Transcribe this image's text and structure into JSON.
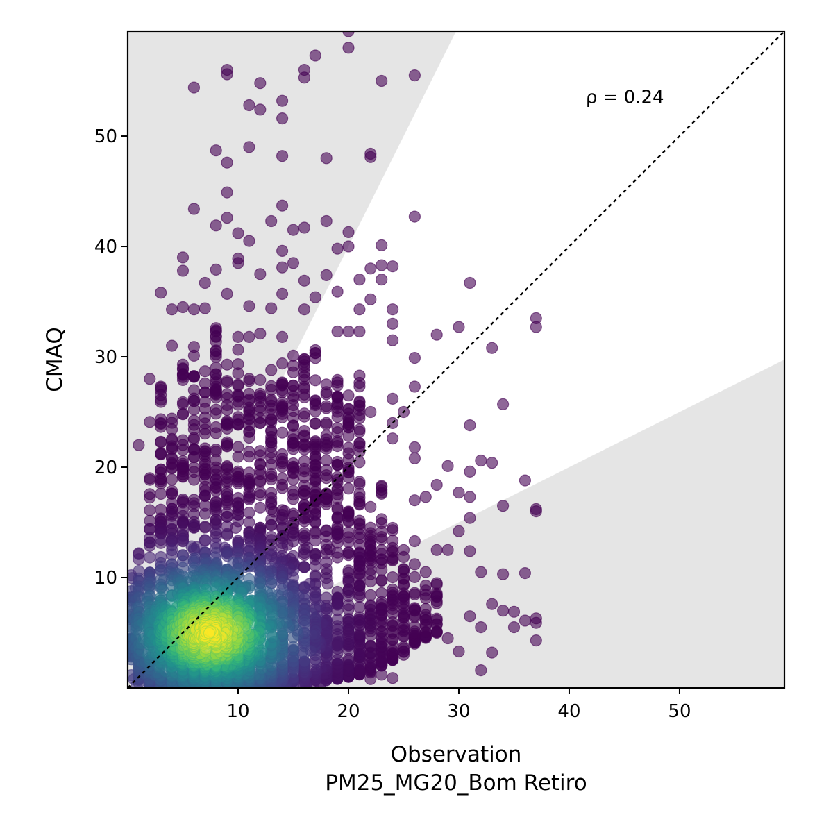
{
  "chart_data": {
    "type": "scatter",
    "title": "",
    "xlabel": "Observation",
    "xlabel_line2": "PM25_MG20_Bom Retiro",
    "ylabel": "CMAQ",
    "xlim": [
      0,
      59.5
    ],
    "ylim": [
      0,
      59.5
    ],
    "xticks": [
      10,
      20,
      30,
      40,
      50
    ],
    "yticks": [
      10,
      20,
      30,
      40,
      50
    ],
    "annotation": "ρ = 0.24",
    "annotation_pos": [
      41.5,
      53
    ],
    "reference_line": "1:1 dashed",
    "shaded_regions": "outside factor-of-2 band (y > 2x and y < x/2)",
    "grid": false,
    "color_encoding": "point density (viridis)",
    "colors": {
      "low_density": "#440154",
      "mid_density": "#21918c",
      "high_density": "#fde725",
      "shade": "#e5e5e5",
      "point_alpha": 0.6
    },
    "outlier_points": [
      [
        6,
        54.4
      ],
      [
        9,
        56
      ],
      [
        9,
        55.6
      ],
      [
        12,
        54.8
      ],
      [
        16,
        56
      ],
      [
        16,
        55.3
      ],
      [
        17,
        57.3
      ],
      [
        20,
        59.5
      ],
      [
        20,
        58
      ],
      [
        23,
        55
      ],
      [
        26,
        55.5
      ],
      [
        11,
        52.8
      ],
      [
        12,
        52.4
      ],
      [
        14,
        53.2
      ],
      [
        14,
        51.6
      ],
      [
        8,
        48.7
      ],
      [
        9,
        47.6
      ],
      [
        11,
        49
      ],
      [
        14,
        48.2
      ],
      [
        18,
        48
      ],
      [
        22,
        48.4
      ],
      [
        22,
        48.1
      ],
      [
        9,
        44.9
      ],
      [
        6,
        43.4
      ],
      [
        9,
        42.6
      ],
      [
        8,
        41.9
      ],
      [
        10,
        41.2
      ],
      [
        11,
        40.5
      ],
      [
        13,
        42.3
      ],
      [
        14,
        43.7
      ],
      [
        15,
        41.5
      ],
      [
        16,
        41.7
      ],
      [
        18,
        42.3
      ],
      [
        20,
        41.3
      ],
      [
        20,
        40
      ],
      [
        19,
        39.8
      ],
      [
        23,
        40.1
      ],
      [
        26,
        42.7
      ],
      [
        5,
        39
      ],
      [
        5,
        37.8
      ],
      [
        7,
        36.7
      ],
      [
        8,
        37.9
      ],
      [
        10,
        38.9
      ],
      [
        10,
        38.5
      ],
      [
        12,
        37.5
      ],
      [
        14,
        38.1
      ],
      [
        14,
        39.6
      ],
      [
        15,
        38.5
      ],
      [
        16,
        36.9
      ],
      [
        18,
        37.4
      ],
      [
        21,
        37
      ],
      [
        22,
        38
      ],
      [
        23,
        37
      ],
      [
        23,
        38.3
      ],
      [
        24,
        38.2
      ],
      [
        31,
        36.7
      ],
      [
        3,
        35.8
      ],
      [
        4,
        34.3
      ],
      [
        5,
        34.5
      ],
      [
        6,
        34.3
      ],
      [
        7,
        34.4
      ],
      [
        9,
        35.7
      ],
      [
        11,
        34.6
      ],
      [
        13,
        34.4
      ],
      [
        14,
        35.7
      ],
      [
        16,
        34.3
      ],
      [
        17,
        35.4
      ],
      [
        19,
        35.9
      ],
      [
        21,
        34.3
      ],
      [
        22,
        35.2
      ],
      [
        24,
        34.3
      ],
      [
        24,
        33
      ],
      [
        26,
        29.9
      ],
      [
        2,
        28
      ],
      [
        3,
        27
      ],
      [
        4,
        31
      ],
      [
        6,
        30.9
      ],
      [
        8,
        32.6
      ],
      [
        11,
        31.8
      ],
      [
        12,
        32.1
      ],
      [
        14,
        31.8
      ],
      [
        19,
        32.3
      ],
      [
        20,
        32.3
      ],
      [
        21,
        32.3
      ],
      [
        24,
        31.5
      ],
      [
        26,
        27.3
      ],
      [
        28,
        32
      ],
      [
        30,
        32.7
      ],
      [
        33,
        30.8
      ],
      [
        37,
        33.5
      ],
      [
        37,
        32.7
      ],
      [
        1,
        22
      ],
      [
        2,
        24.1
      ],
      [
        3,
        24
      ],
      [
        25,
        25
      ],
      [
        22,
        25
      ],
      [
        24,
        26.2
      ],
      [
        24,
        24
      ],
      [
        24,
        22.6
      ],
      [
        26,
        21.8
      ],
      [
        26,
        20.8
      ],
      [
        29,
        20.1
      ],
      [
        32,
        20.6
      ],
      [
        33,
        20.4
      ],
      [
        31,
        19.6
      ],
      [
        36,
        18.8
      ],
      [
        31,
        23.8
      ],
      [
        34,
        25.7
      ],
      [
        28,
        18.4
      ],
      [
        26,
        17
      ],
      [
        27,
        17.3
      ],
      [
        30,
        17.7
      ],
      [
        31,
        17.3
      ],
      [
        34,
        16.5
      ],
      [
        37,
        16.2
      ],
      [
        37,
        16
      ],
      [
        30,
        14.2
      ],
      [
        31,
        15.4
      ],
      [
        26,
        13.3
      ],
      [
        28,
        12.5
      ],
      [
        29,
        12.5
      ],
      [
        31,
        12.4
      ],
      [
        32,
        10.5
      ],
      [
        34,
        10.3
      ],
      [
        36,
        10.4
      ],
      [
        33,
        7.6
      ],
      [
        34,
        7
      ],
      [
        35,
        6.9
      ],
      [
        36,
        6.1
      ],
      [
        37,
        6.3
      ],
      [
        37,
        5.9
      ],
      [
        37,
        4.3
      ],
      [
        35,
        5.5
      ],
      [
        32,
        5.5
      ],
      [
        31,
        6.5
      ],
      [
        30,
        3.3
      ],
      [
        33,
        3.2
      ],
      [
        32,
        1.6
      ],
      [
        29,
        4.5
      ],
      [
        28,
        5
      ],
      [
        26,
        4.5
      ],
      [
        25,
        5.5
      ],
      [
        24,
        7.5
      ],
      [
        22,
        1.4
      ],
      [
        23,
        1.2
      ],
      [
        24,
        0.9
      ],
      [
        22,
        0.8
      ],
      [
        21,
        2.8
      ]
    ],
    "dense_rows": [
      {
        "x": 1,
        "ymin": 0.2,
        "ymax": 12.2
      },
      {
        "x": 2,
        "ymin": 0.2,
        "ymax": 19
      },
      {
        "x": 3,
        "ymin": 0.2,
        "ymax": 27.3
      },
      {
        "x": 4,
        "ymin": 0.3,
        "ymax": 24.4
      },
      {
        "x": 5,
        "ymin": 0.3,
        "ymax": 29.3
      },
      {
        "x": 6,
        "ymin": 0.3,
        "ymax": 30.1
      },
      {
        "x": 7,
        "ymin": 0.4,
        "ymax": 28.7
      },
      {
        "x": 8,
        "ymin": 0.4,
        "ymax": 32.4
      },
      {
        "x": 9,
        "ymin": 0.4,
        "ymax": 29.3
      },
      {
        "x": 10,
        "ymin": 0.5,
        "ymax": 31.8
      },
      {
        "x": 11,
        "ymin": 0.5,
        "ymax": 28
      },
      {
        "x": 12,
        "ymin": 0.5,
        "ymax": 27.9
      },
      {
        "x": 13,
        "ymin": 0.5,
        "ymax": 28.8
      },
      {
        "x": 14,
        "ymin": 0.6,
        "ymax": 29.4
      },
      {
        "x": 15,
        "ymin": 0.6,
        "ymax": 30.1
      },
      {
        "x": 16,
        "ymin": 0.6,
        "ymax": 29.8
      },
      {
        "x": 17,
        "ymin": 0.7,
        "ymax": 30.6
      },
      {
        "x": 18,
        "ymin": 0.7,
        "ymax": 27.5
      },
      {
        "x": 19,
        "ymin": 0.8,
        "ymax": 27.9
      },
      {
        "x": 20,
        "ymin": 1,
        "ymax": 26.5
      },
      {
        "x": 21,
        "ymin": 1.2,
        "ymax": 28.3
      },
      {
        "x": 22,
        "ymin": 1.5,
        "ymax": 16.4
      },
      {
        "x": 23,
        "ymin": 2,
        "ymax": 18.3
      },
      {
        "x": 24,
        "ymin": 2.5,
        "ymax": 14.5
      },
      {
        "x": 25,
        "ymin": 3,
        "ymax": 12.5
      },
      {
        "x": 26,
        "ymin": 4,
        "ymax": 11.2
      },
      {
        "x": 27,
        "ymin": 4.5,
        "ymax": 10.5
      },
      {
        "x": 28,
        "ymin": 5,
        "ymax": 9.5
      }
    ],
    "density_peak": [
      7.5,
      5
    ]
  }
}
